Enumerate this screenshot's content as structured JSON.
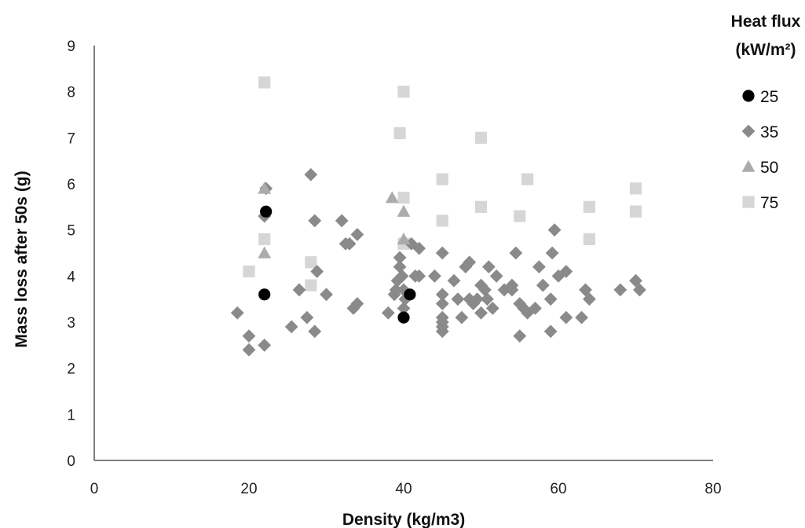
{
  "chart_data": {
    "type": "scatter",
    "title": "",
    "xlabel": "Density (kg/m3)",
    "ylabel": "Mass loss after 50s (g)",
    "xlim": [
      0,
      80
    ],
    "ylim": [
      0,
      9
    ],
    "xticks": [
      0,
      20,
      40,
      60,
      80
    ],
    "yticks": [
      0,
      1,
      2,
      3,
      4,
      5,
      6,
      7,
      8,
      9
    ],
    "grid": false,
    "legend_title_line1": "Heat flux",
    "legend_title_line2": "(kW/m²)",
    "legend_position": "right",
    "series": [
      {
        "name": "25",
        "marker": "circle",
        "color": "#000000",
        "points": [
          [
            22.2,
            5.4
          ],
          [
            22.0,
            3.6
          ],
          [
            40.0,
            3.1
          ],
          [
            40.8,
            3.6
          ]
        ]
      },
      {
        "name": "35",
        "marker": "diamond",
        "color": "#8a8a8a",
        "points": [
          [
            18.5,
            3.2
          ],
          [
            20.0,
            2.7
          ],
          [
            20.0,
            2.4
          ],
          [
            22.0,
            2.5
          ],
          [
            22.0,
            5.3
          ],
          [
            22.2,
            5.9
          ],
          [
            25.5,
            2.9
          ],
          [
            26.5,
            3.7
          ],
          [
            27.5,
            3.1
          ],
          [
            28.0,
            6.2
          ],
          [
            28.5,
            2.8
          ],
          [
            28.5,
            5.2
          ],
          [
            28.8,
            4.1
          ],
          [
            30.0,
            3.6
          ],
          [
            32.0,
            5.2
          ],
          [
            32.5,
            4.7
          ],
          [
            33.0,
            4.7
          ],
          [
            33.5,
            3.3
          ],
          [
            34.0,
            4.9
          ],
          [
            34.0,
            3.4
          ],
          [
            38.0,
            3.2
          ],
          [
            38.8,
            3.6
          ],
          [
            39.0,
            3.7
          ],
          [
            39.2,
            3.9
          ],
          [
            39.5,
            4.4
          ],
          [
            39.5,
            4.2
          ],
          [
            39.8,
            4.0
          ],
          [
            40.0,
            3.7
          ],
          [
            40.0,
            3.3
          ],
          [
            40.2,
            3.5
          ],
          [
            41.0,
            4.7
          ],
          [
            41.5,
            4.0
          ],
          [
            42.0,
            4.6
          ],
          [
            42.0,
            4.0
          ],
          [
            44.0,
            4.0
          ],
          [
            45.0,
            4.5
          ],
          [
            45.0,
            3.6
          ],
          [
            45.0,
            3.4
          ],
          [
            45.0,
            3.1
          ],
          [
            45.0,
            3.0
          ],
          [
            45.0,
            2.9
          ],
          [
            45.0,
            2.8
          ],
          [
            46.5,
            3.9
          ],
          [
            47.0,
            3.5
          ],
          [
            47.5,
            3.1
          ],
          [
            48.0,
            4.2
          ],
          [
            48.5,
            4.3
          ],
          [
            48.5,
            3.5
          ],
          [
            49.0,
            3.4
          ],
          [
            49.5,
            3.5
          ],
          [
            50.0,
            3.8
          ],
          [
            50.0,
            3.2
          ],
          [
            50.5,
            3.7
          ],
          [
            50.8,
            3.5
          ],
          [
            51.0,
            4.2
          ],
          [
            51.5,
            3.3
          ],
          [
            52.0,
            4.0
          ],
          [
            53.0,
            3.7
          ],
          [
            54.0,
            3.8
          ],
          [
            54.0,
            3.7
          ],
          [
            54.5,
            4.5
          ],
          [
            55.0,
            3.4
          ],
          [
            55.0,
            2.7
          ],
          [
            55.5,
            3.3
          ],
          [
            56.0,
            3.2
          ],
          [
            57.0,
            3.3
          ],
          [
            57.5,
            4.2
          ],
          [
            58.0,
            3.8
          ],
          [
            59.0,
            3.5
          ],
          [
            59.0,
            2.8
          ],
          [
            59.2,
            4.5
          ],
          [
            59.5,
            5.0
          ],
          [
            60.0,
            4.0
          ],
          [
            61.0,
            4.1
          ],
          [
            61.0,
            3.1
          ],
          [
            63.0,
            3.1
          ],
          [
            63.5,
            3.7
          ],
          [
            64.0,
            3.5
          ],
          [
            68.0,
            3.7
          ],
          [
            70.0,
            3.9
          ],
          [
            70.5,
            3.7
          ]
        ]
      },
      {
        "name": "50",
        "marker": "triangle",
        "color": "#ababab",
        "points": [
          [
            22.0,
            5.9
          ],
          [
            22.0,
            4.5
          ],
          [
            38.5,
            5.7
          ],
          [
            40.0,
            5.4
          ],
          [
            40.0,
            4.8
          ]
        ]
      },
      {
        "name": "75",
        "marker": "square",
        "color": "#d6d6d6",
        "points": [
          [
            22.0,
            8.2
          ],
          [
            22.0,
            4.8
          ],
          [
            20.0,
            4.1
          ],
          [
            28.0,
            4.3
          ],
          [
            28.0,
            3.8
          ],
          [
            40.0,
            8.0
          ],
          [
            39.5,
            7.1
          ],
          [
            40.0,
            5.7
          ],
          [
            40.0,
            4.7
          ],
          [
            45.0,
            6.1
          ],
          [
            45.0,
            5.2
          ],
          [
            50.0,
            7.0
          ],
          [
            50.0,
            5.5
          ],
          [
            55.0,
            5.3
          ],
          [
            56.0,
            6.1
          ],
          [
            64.0,
            5.5
          ],
          [
            64.0,
            4.8
          ],
          [
            70.0,
            5.9
          ],
          [
            70.0,
            5.4
          ]
        ]
      }
    ]
  }
}
